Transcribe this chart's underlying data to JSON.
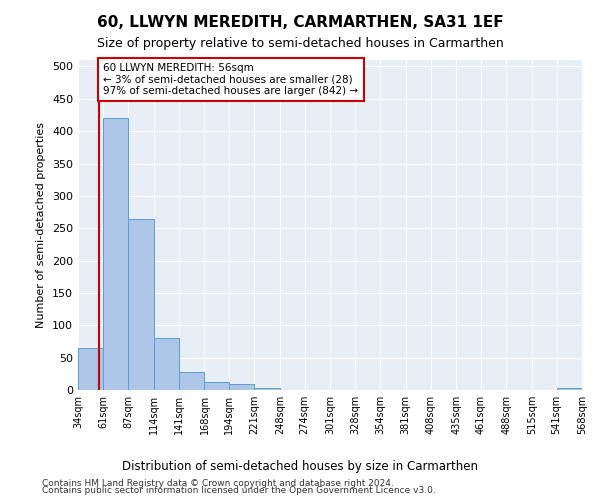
{
  "title": "60, LLWYN MEREDITH, CARMARTHEN, SA31 1EF",
  "subtitle": "Size of property relative to semi-detached houses in Carmarthen",
  "xlabel_bottom": "Distribution of semi-detached houses by size in Carmarthen",
  "ylabel": "Number of semi-detached properties",
  "footer1": "Contains HM Land Registry data © Crown copyright and database right 2024.",
  "footer2": "Contains public sector information licensed under the Open Government Licence v3.0.",
  "annotation_line1": "60 LLWYN MEREDITH: 56sqm",
  "annotation_line2": "← 3% of semi-detached houses are smaller (28)",
  "annotation_line3": "97% of semi-detached houses are larger (842) →",
  "bar_color": "#aec6e8",
  "bar_edge_color": "#5a9fd4",
  "highlight_line_color": "#cc0000",
  "annotation_box_color": "#cc0000",
  "bg_color": "#e8eef6",
  "property_sqm": 56,
  "bin_edges": [
    34,
    61,
    87,
    114,
    141,
    168,
    194,
    221,
    248,
    274,
    301,
    328,
    354,
    381,
    408,
    435,
    461,
    488,
    515,
    541,
    568
  ],
  "bin_labels": [
    "34sqm",
    "61sqm",
    "87sqm",
    "114sqm",
    "141sqm",
    "168sqm",
    "194sqm",
    "221sqm",
    "248sqm",
    "274sqm",
    "301sqm",
    "328sqm",
    "354sqm",
    "381sqm",
    "408sqm",
    "435sqm",
    "461sqm",
    "488sqm",
    "515sqm",
    "541sqm",
    "568sqm"
  ],
  "bar_heights": [
    65,
    420,
    265,
    80,
    28,
    12,
    10,
    3,
    0,
    0,
    0,
    0,
    0,
    0,
    0,
    0,
    0,
    0,
    0,
    3
  ],
  "ylim": [
    0,
    510
  ],
  "yticks": [
    0,
    50,
    100,
    150,
    200,
    250,
    300,
    350,
    400,
    450,
    500
  ]
}
